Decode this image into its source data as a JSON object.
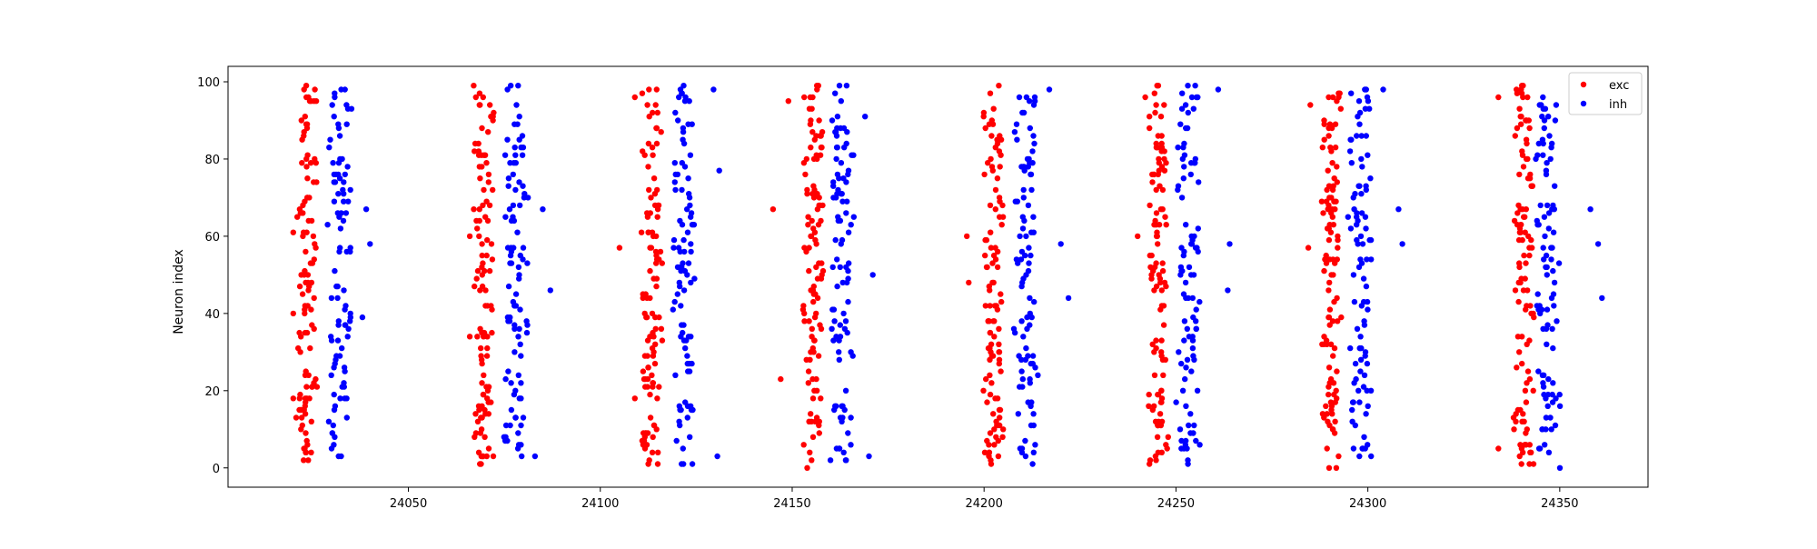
{
  "chart_data": {
    "type": "scatter",
    "title": "",
    "xlabel": "",
    "ylabel": "Neuron index",
    "xlim": [
      24003,
      24373
    ],
    "ylim": [
      -5,
      104
    ],
    "xticks": [
      24050,
      24100,
      24150,
      24200,
      24250,
      24300,
      24350
    ],
    "yticks": [
      0,
      20,
      40,
      60,
      80,
      100
    ],
    "xtick_labels": [
      "24050",
      "24100",
      "24150",
      "24200",
      "24250",
      "24300",
      "24350"
    ],
    "ytick_labels": [
      "0",
      "20",
      "40",
      "60",
      "80",
      "100"
    ],
    "grid": false,
    "legend_position": "top-right",
    "series": [
      {
        "name": "exc",
        "color": "#ff0000",
        "marker": "circle",
        "bursts": [
          {
            "center": 24023.5,
            "spread": 4,
            "count": 110
          },
          {
            "center": 24069.5,
            "spread": 4,
            "count": 110
          },
          {
            "center": 24113.5,
            "spread": 4,
            "count": 110
          },
          {
            "center": 24155.5,
            "spread": 4,
            "count": 110
          },
          {
            "center": 24202.5,
            "spread": 4,
            "count": 110
          },
          {
            "center": 24245.5,
            "spread": 4,
            "count": 110
          },
          {
            "center": 24290.5,
            "spread": 4,
            "count": 110
          },
          {
            "center": 24340.5,
            "spread": 4,
            "count": 110
          }
        ],
        "outliers": [
          {
            "x": 24020.0,
            "y": 61
          },
          {
            "x": 24020.0,
            "y": 40
          },
          {
            "x": 24020.0,
            "y": 18
          },
          {
            "x": 24066.0,
            "y": 60
          },
          {
            "x": 24066.0,
            "y": 34
          },
          {
            "x": 24105.0,
            "y": 57
          },
          {
            "x": 24109.0,
            "y": 96
          },
          {
            "x": 24109.0,
            "y": 18
          },
          {
            "x": 24145.0,
            "y": 67
          },
          {
            "x": 24147.0,
            "y": 23
          },
          {
            "x": 24149.0,
            "y": 95
          },
          {
            "x": 24195.5,
            "y": 60
          },
          {
            "x": 24196.0,
            "y": 48
          },
          {
            "x": 24240.0,
            "y": 60
          },
          {
            "x": 24242.0,
            "y": 96
          },
          {
            "x": 24284.5,
            "y": 57
          },
          {
            "x": 24285.0,
            "y": 94
          },
          {
            "x": 24334.0,
            "y": 96
          },
          {
            "x": 24334.0,
            "y": 5
          }
        ]
      },
      {
        "name": "inh",
        "color": "#0000ff",
        "marker": "circle",
        "bursts": [
          {
            "center": 24032.0,
            "spread": 5,
            "count": 95
          },
          {
            "center": 24078.0,
            "spread": 5,
            "count": 95
          },
          {
            "center": 24122.0,
            "spread": 5,
            "count": 95
          },
          {
            "center": 24163.0,
            "spread": 5,
            "count": 95
          },
          {
            "center": 24211.0,
            "spread": 5,
            "count": 95
          },
          {
            "center": 24253.0,
            "spread": 5,
            "count": 95
          },
          {
            "center": 24298.0,
            "spread": 5,
            "count": 95
          },
          {
            "center": 24347.0,
            "spread": 5,
            "count": 95
          }
        ],
        "outliers": [
          {
            "x": 24040.0,
            "y": 58
          },
          {
            "x": 24039.0,
            "y": 67
          },
          {
            "x": 24038.0,
            "y": 39
          },
          {
            "x": 24087.0,
            "y": 46
          },
          {
            "x": 24085.0,
            "y": 67
          },
          {
            "x": 24083.0,
            "y": 3
          },
          {
            "x": 24131.0,
            "y": 77
          },
          {
            "x": 24130.5,
            "y": 3
          },
          {
            "x": 24129.5,
            "y": 98
          },
          {
            "x": 24171.0,
            "y": 50
          },
          {
            "x": 24170.0,
            "y": 3
          },
          {
            "x": 24169.0,
            "y": 91
          },
          {
            "x": 24222.0,
            "y": 44
          },
          {
            "x": 24220.0,
            "y": 58
          },
          {
            "x": 24217.0,
            "y": 98
          },
          {
            "x": 24264.0,
            "y": 58
          },
          {
            "x": 24263.5,
            "y": 46
          },
          {
            "x": 24261.0,
            "y": 98
          },
          {
            "x": 24309.0,
            "y": 58
          },
          {
            "x": 24308.0,
            "y": 67
          },
          {
            "x": 24304.0,
            "y": 98
          },
          {
            "x": 24360.0,
            "y": 58
          },
          {
            "x": 24361.0,
            "y": 44
          },
          {
            "x": 24358.0,
            "y": 67
          }
        ]
      }
    ]
  }
}
